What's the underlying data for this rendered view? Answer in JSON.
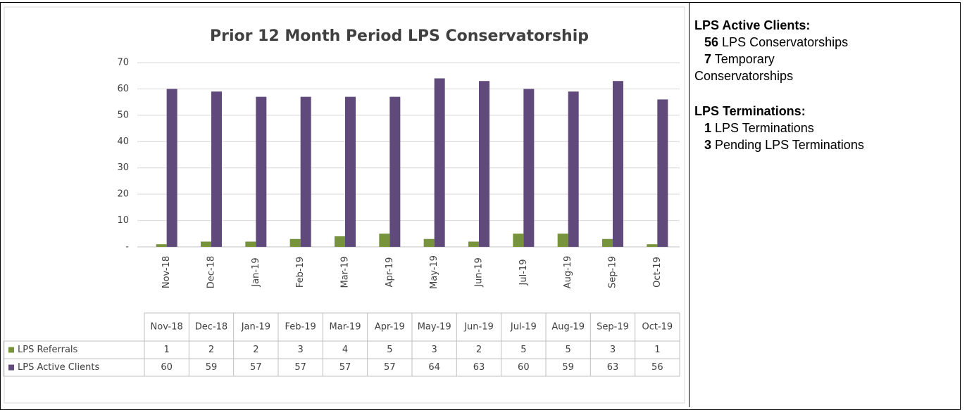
{
  "chart_data": {
    "type": "bar",
    "title": "Prior 12 Month Period LPS Conservatorship",
    "categories": [
      "Nov-18",
      "Dec-18",
      "Jan-19",
      "Feb-19",
      "Mar-19",
      "Apr-19",
      "May-19",
      "Jun-19",
      "Jul-19",
      "Aug-19",
      "Sep-19",
      "Oct-19"
    ],
    "series": [
      {
        "name": "LPS Referrals",
        "color": "#77933c",
        "values": [
          1,
          2,
          2,
          3,
          4,
          5,
          3,
          2,
          5,
          5,
          3,
          1
        ]
      },
      {
        "name": "LPS Active Clients",
        "color": "#604a7b",
        "values": [
          60,
          59,
          57,
          57,
          57,
          57,
          64,
          63,
          60,
          59,
          63,
          56
        ]
      }
    ],
    "ylim": [
      0,
      70
    ],
    "yticks": [
      {
        "value": 0,
        "label": "-"
      },
      10,
      20,
      30,
      40,
      50,
      60,
      70
    ],
    "grid": true
  },
  "sidebar": {
    "sections": [
      {
        "heading": "LPS Active Clients:",
        "items": [
          {
            "count": 56,
            "text": "LPS Conservatorships"
          },
          {
            "count": 7,
            "text": "Temporary Conservatorships"
          }
        ]
      },
      {
        "heading": "LPS Terminations:",
        "items": [
          {
            "count": 1,
            "text": "LPS Terminations"
          },
          {
            "count": 3,
            "text": "Pending LPS Terminations"
          }
        ]
      }
    ]
  }
}
